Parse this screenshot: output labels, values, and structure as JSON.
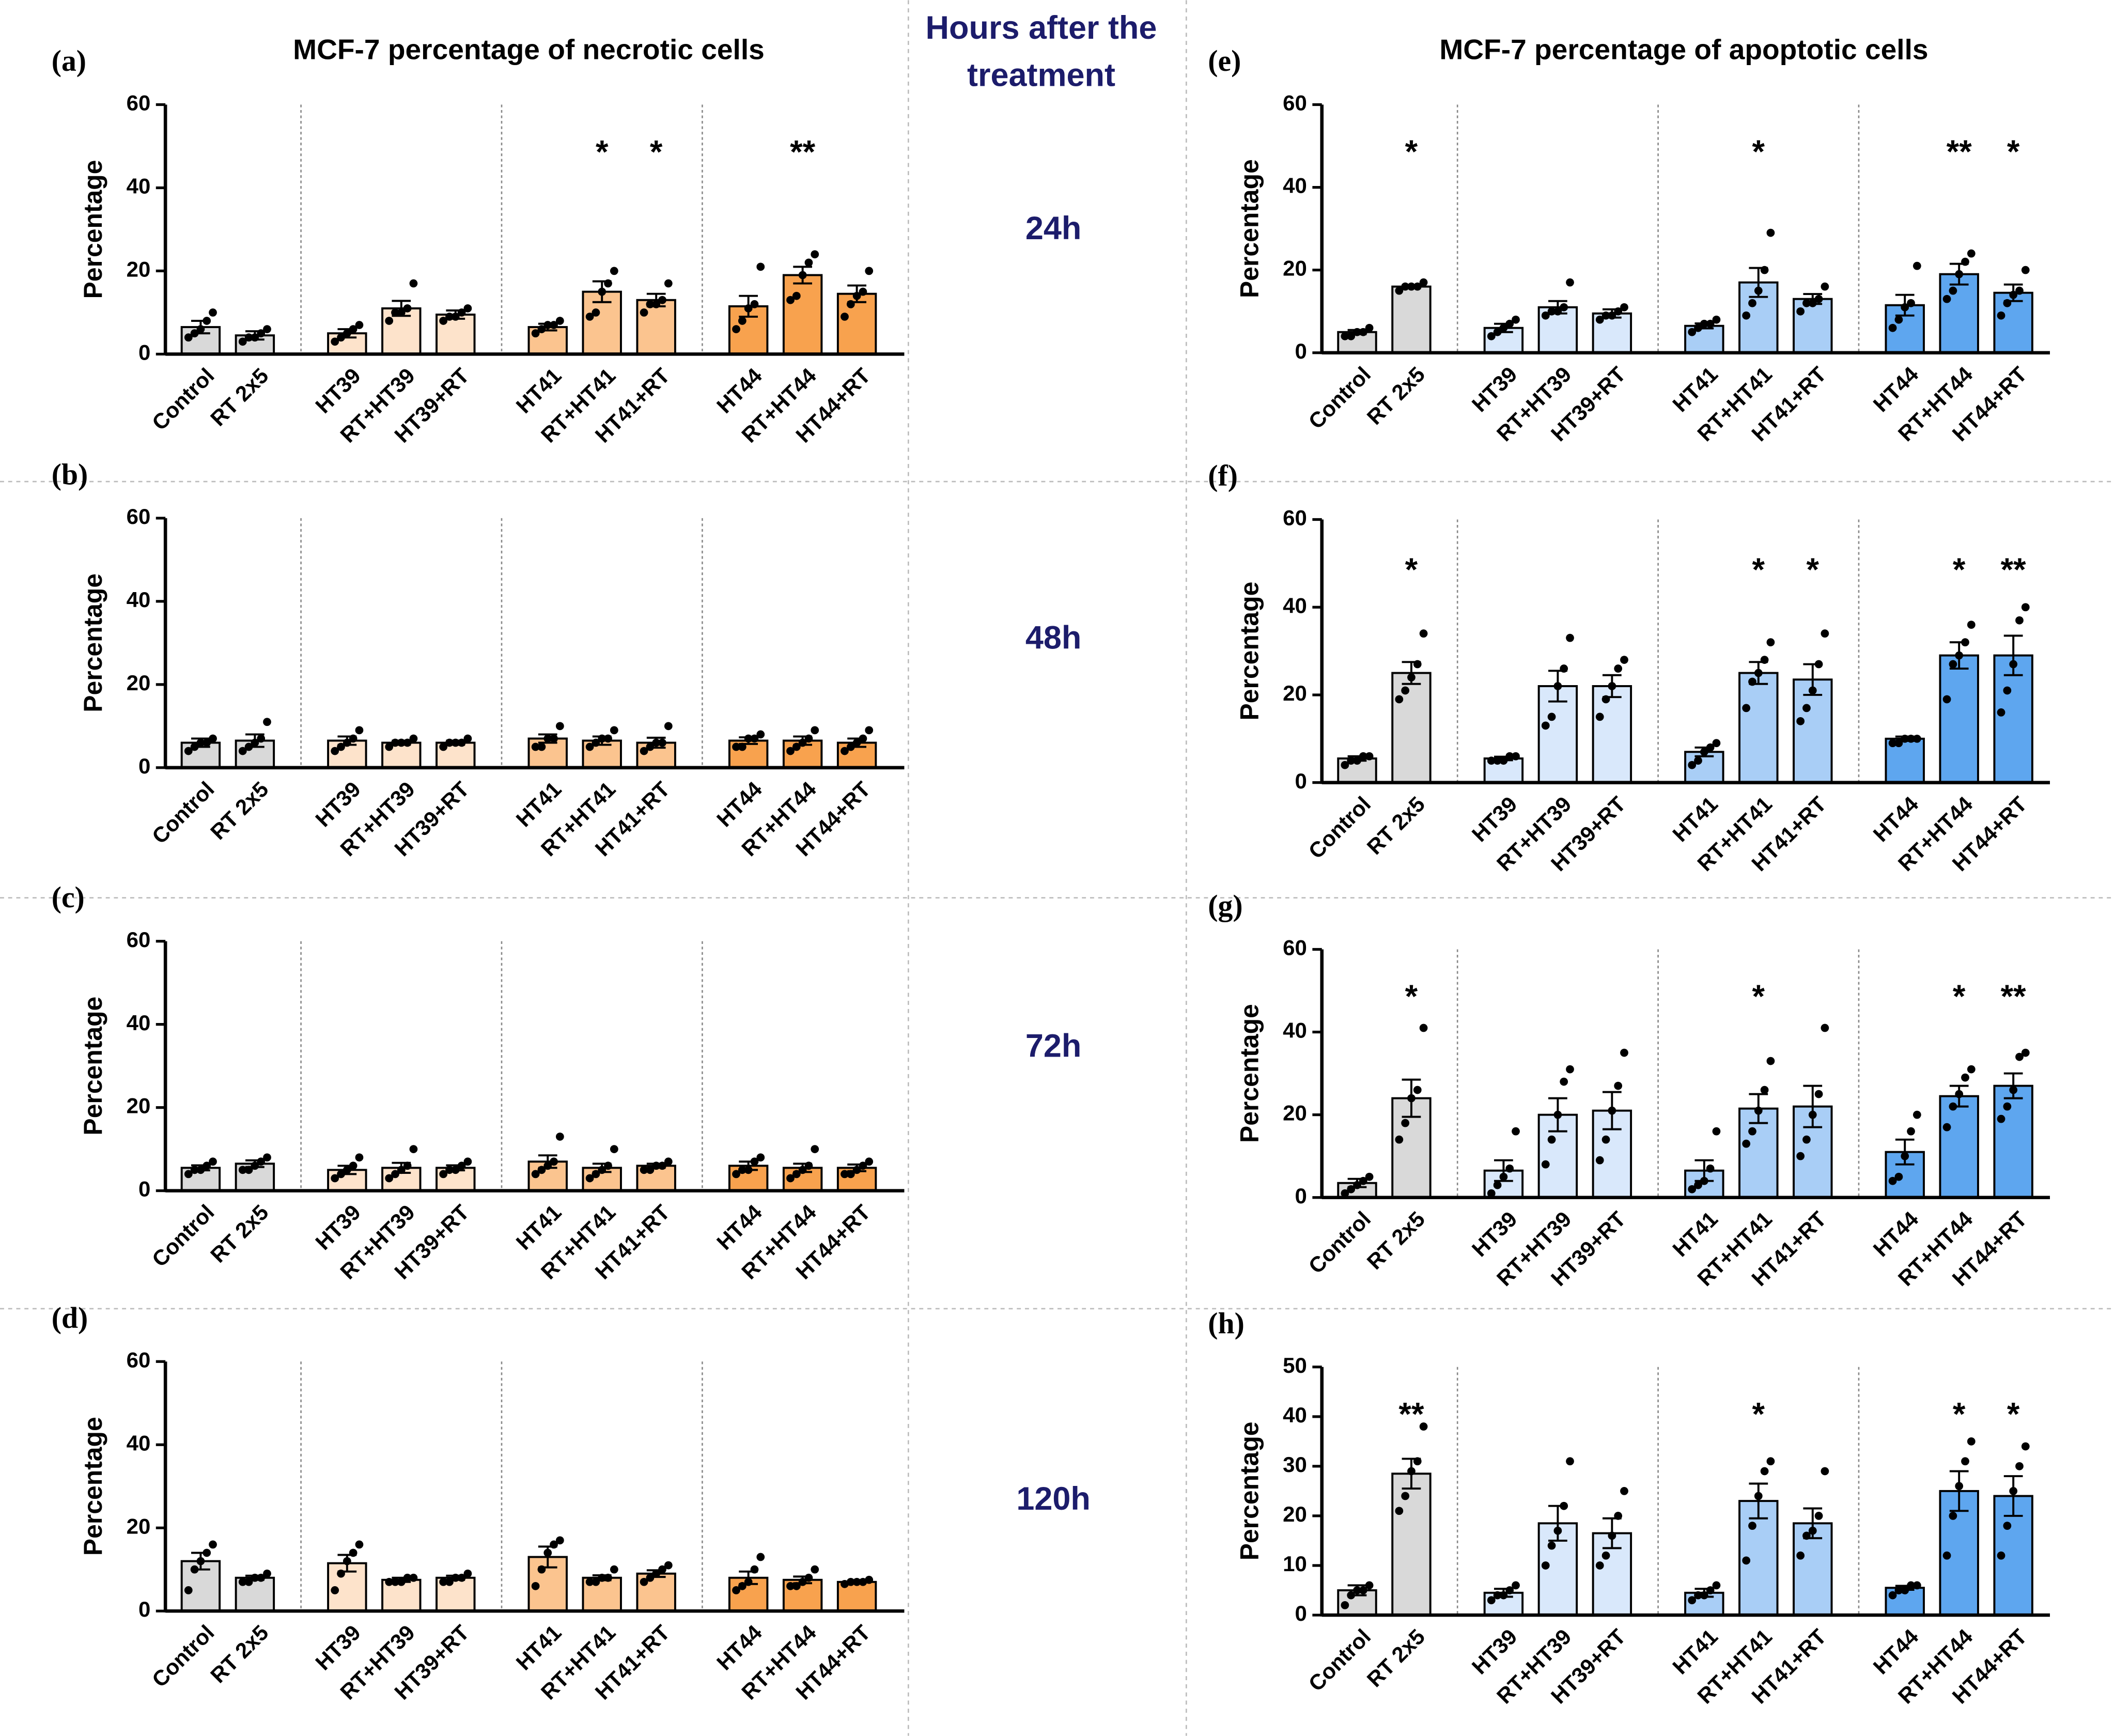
{
  "column_titles": [
    "MCF-7 percentage of necrotic cells",
    "MCF-7 percentage of apoptotic cells"
  ],
  "hours_header": [
    "Hours after the",
    "treatment"
  ],
  "hours": [
    "24h",
    "48h",
    "72h",
    "120h"
  ],
  "chart_data": [
    {
      "type": "bar",
      "panel": "(a)",
      "ylabel": "Percentage",
      "categories": [
        "Control",
        "RT 2x5",
        "HT39",
        "RT+HT39",
        "HT39+RT",
        "HT41",
        "RT+HT41",
        "HT41+RT",
        "HT44",
        "RT+HT44",
        "HT44+RT"
      ],
      "colors": [
        "#d9d9d9",
        "#d9d9d9",
        "#fde3cb",
        "#fde3cb",
        "#fde3cb",
        "#fbc48f",
        "#fbc48f",
        "#fbc48f",
        "#f8a24e",
        "#f8a24e",
        "#f8a24e"
      ],
      "values": [
        6.5,
        4.5,
        5,
        11,
        9.5,
        6.5,
        15,
        13,
        11.5,
        19,
        14.5
      ],
      "errors": [
        1.5,
        1,
        1,
        1.8,
        1,
        0.8,
        2.5,
        1.5,
        2.5,
        2,
        2
      ],
      "points": [
        [
          4,
          5,
          6,
          8,
          10
        ],
        [
          3,
          4,
          4,
          5,
          6
        ],
        [
          3,
          4,
          5,
          6,
          7
        ],
        [
          8,
          10,
          10,
          11,
          17
        ],
        [
          8,
          9,
          9,
          10,
          11
        ],
        [
          5,
          6,
          7,
          7,
          8
        ],
        [
          9,
          10,
          15,
          17,
          20
        ],
        [
          10,
          12,
          12,
          13,
          17
        ],
        [
          6,
          8,
          11,
          12,
          21
        ],
        [
          13,
          14,
          19,
          22,
          24
        ],
        [
          9,
          12,
          14,
          15,
          20
        ]
      ],
      "ylim": [
        0,
        60
      ],
      "yticks": [
        0,
        20,
        40,
        60
      ],
      "annotations": [
        {
          "index": 6,
          "label": "*"
        },
        {
          "index": 7,
          "label": "*"
        },
        {
          "index": 9,
          "label": "**"
        }
      ]
    },
    {
      "type": "bar",
      "panel": "(b)",
      "ylabel": "Percentage",
      "categories": [
        "Control",
        "RT 2x5",
        "HT39",
        "RT+HT39",
        "HT39+RT",
        "HT41",
        "RT+HT41",
        "HT41+RT",
        "HT44",
        "RT+HT44",
        "HT44+RT"
      ],
      "colors": [
        "#d9d9d9",
        "#d9d9d9",
        "#fde3cb",
        "#fde3cb",
        "#fde3cb",
        "#fbc48f",
        "#fbc48f",
        "#fbc48f",
        "#f8a24e",
        "#f8a24e",
        "#f8a24e"
      ],
      "values": [
        6,
        6.5,
        6.5,
        6,
        6,
        7,
        6.5,
        6,
        6.5,
        6.5,
        6
      ],
      "errors": [
        1,
        1.5,
        1,
        0.5,
        0.5,
        1,
        1,
        1.2,
        0.8,
        1,
        1
      ],
      "points": [
        [
          4,
          5,
          6,
          6,
          7
        ],
        [
          4,
          5,
          6,
          7,
          11
        ],
        [
          4,
          5,
          6,
          7,
          9
        ],
        [
          5,
          6,
          6,
          6,
          7
        ],
        [
          5,
          6,
          6,
          6,
          7
        ],
        [
          5,
          5,
          7,
          7,
          10
        ],
        [
          5,
          6,
          7,
          7,
          9
        ],
        [
          4,
          5,
          6,
          6,
          10
        ],
        [
          5,
          5,
          7,
          7,
          8
        ],
        [
          4,
          5,
          6,
          7,
          9
        ],
        [
          4,
          5,
          6,
          7,
          9
        ]
      ],
      "ylim": [
        0,
        60
      ],
      "yticks": [
        0,
        20,
        40,
        60
      ],
      "annotations": []
    },
    {
      "type": "bar",
      "panel": "(c)",
      "ylabel": "Percentage",
      "categories": [
        "Control",
        "RT 2x5",
        "HT39",
        "RT+HT39",
        "HT39+RT",
        "HT41",
        "RT+HT41",
        "HT41+RT",
        "HT44",
        "RT+HT44",
        "HT44+RT"
      ],
      "colors": [
        "#d9d9d9",
        "#d9d9d9",
        "#fde3cb",
        "#fde3cb",
        "#fde3cb",
        "#fbc48f",
        "#fbc48f",
        "#fbc48f",
        "#f8a24e",
        "#f8a24e",
        "#f8a24e"
      ],
      "values": [
        5.5,
        6.5,
        5,
        5.5,
        5.5,
        7,
        5.5,
        6,
        6,
        5.5,
        5.5
      ],
      "errors": [
        0.6,
        0.8,
        1,
        1.2,
        0.6,
        1.5,
        1,
        0.5,
        1,
        1,
        0.8
      ],
      "points": [
        [
          4,
          5,
          5,
          6,
          7
        ],
        [
          5,
          5,
          6,
          7,
          8
        ],
        [
          3,
          4,
          5,
          6,
          8
        ],
        [
          3,
          4,
          5,
          6,
          10
        ],
        [
          4,
          5,
          5,
          6,
          7
        ],
        [
          4,
          5,
          6,
          7,
          13
        ],
        [
          3,
          4,
          5,
          6,
          10
        ],
        [
          5,
          5,
          6,
          6,
          7
        ],
        [
          4,
          5,
          5,
          7,
          8
        ],
        [
          3,
          4,
          5,
          6,
          10
        ],
        [
          4,
          4,
          5,
          6,
          7
        ]
      ],
      "ylim": [
        0,
        60
      ],
      "yticks": [
        0,
        20,
        40,
        60
      ],
      "annotations": []
    },
    {
      "type": "bar",
      "panel": "(d)",
      "ylabel": "Percentage",
      "categories": [
        "Control",
        "RT 2x5",
        "HT39",
        "RT+HT39",
        "HT39+RT",
        "HT41",
        "RT+HT41",
        "HT41+RT",
        "HT44",
        "RT+HT44",
        "HT44+RT"
      ],
      "colors": [
        "#d9d9d9",
        "#d9d9d9",
        "#fde3cb",
        "#fde3cb",
        "#fde3cb",
        "#fbc48f",
        "#fbc48f",
        "#fbc48f",
        "#f8a24e",
        "#f8a24e",
        "#f8a24e"
      ],
      "values": [
        12,
        8,
        11.5,
        7.5,
        8,
        13,
        8,
        9,
        8,
        7.5,
        7
      ],
      "errors": [
        2,
        0.5,
        2,
        0.5,
        0.5,
        2.5,
        0.6,
        0.8,
        1.5,
        0.8,
        0.3
      ],
      "points": [
        [
          5,
          10,
          12,
          14,
          16
        ],
        [
          7,
          7,
          8,
          8,
          9
        ],
        [
          5,
          9,
          12,
          14,
          16
        ],
        [
          7,
          7,
          7,
          8,
          8
        ],
        [
          7,
          7,
          8,
          8,
          9
        ],
        [
          6,
          10,
          14,
          16,
          17
        ],
        [
          7,
          7,
          8,
          8,
          10
        ],
        [
          7,
          8,
          9,
          10,
          11
        ],
        [
          5,
          6,
          7,
          10,
          13
        ],
        [
          6,
          6,
          7,
          8,
          10
        ],
        [
          6.5,
          7,
          7,
          7,
          7.5
        ]
      ],
      "ylim": [
        0,
        60
      ],
      "yticks": [
        0,
        20,
        40,
        60
      ],
      "annotations": []
    },
    {
      "type": "bar",
      "panel": "(e)",
      "ylabel": "Percentage",
      "categories": [
        "Control",
        "RT 2x5",
        "HT39",
        "RT+HT39",
        "HT39+RT",
        "HT41",
        "RT+HT41",
        "HT41+RT",
        "HT44",
        "RT+HT44",
        "HT44+RT"
      ],
      "colors": [
        "#d9d9d9",
        "#d9d9d9",
        "#d9e8fb",
        "#d9e8fb",
        "#d9e8fb",
        "#a9cef6",
        "#a9cef6",
        "#a9cef6",
        "#5ea6ef",
        "#5ea6ef",
        "#5ea6ef"
      ],
      "values": [
        5,
        16,
        6,
        11,
        9.5,
        6.5,
        17,
        13,
        11.5,
        19,
        14.5
      ],
      "errors": [
        0.5,
        0.4,
        1,
        1.5,
        1,
        0.6,
        3.5,
        1.2,
        2.5,
        2.5,
        2
      ],
      "points": [
        [
          4,
          4,
          5,
          5,
          6
        ],
        [
          15,
          16,
          16,
          16,
          17
        ],
        [
          4,
          5,
          6,
          7,
          8
        ],
        [
          9,
          10,
          10,
          11,
          17
        ],
        [
          8,
          9,
          9,
          10,
          11
        ],
        [
          5,
          6,
          7,
          7,
          8
        ],
        [
          9,
          12,
          15,
          20,
          29
        ],
        [
          10,
          12,
          12,
          13,
          16
        ],
        [
          6,
          8,
          11,
          12,
          21
        ],
        [
          13,
          15,
          19,
          22,
          24
        ],
        [
          9,
          12,
          14,
          15,
          20
        ]
      ],
      "ylim": [
        0,
        60
      ],
      "yticks": [
        0,
        20,
        40,
        60
      ],
      "annotations": [
        {
          "index": 1,
          "label": "*"
        },
        {
          "index": 6,
          "label": "*"
        },
        {
          "index": 9,
          "label": "**"
        },
        {
          "index": 10,
          "label": "*"
        }
      ]
    },
    {
      "type": "bar",
      "panel": "(f)",
      "ylabel": "Percentage",
      "categories": [
        "Control",
        "RT 2x5",
        "HT39",
        "RT+HT39",
        "HT39+RT",
        "HT41",
        "RT+HT41",
        "HT41+RT",
        "HT44",
        "RT+HT44",
        "HT44+RT"
      ],
      "colors": [
        "#d9d9d9",
        "#d9d9d9",
        "#d9e8fb",
        "#d9e8fb",
        "#d9e8fb",
        "#a9cef6",
        "#a9cef6",
        "#a9cef6",
        "#5ea6ef",
        "#5ea6ef",
        "#5ea6ef"
      ],
      "values": [
        5.5,
        25,
        5.5,
        22,
        22,
        7,
        25,
        23.5,
        10,
        29,
        29
      ],
      "errors": [
        0.5,
        2.5,
        0.4,
        3.5,
        2.5,
        1,
        2.5,
        3.5,
        0.5,
        3,
        4.5
      ],
      "points": [
        [
          4,
          5,
          5,
          6,
          6
        ],
        [
          19,
          21,
          24,
          27,
          34
        ],
        [
          5,
          5,
          5,
          6,
          6
        ],
        [
          13,
          15,
          22,
          26,
          33
        ],
        [
          15,
          19,
          22,
          26,
          28
        ],
        [
          4,
          5,
          7,
          8,
          9
        ],
        [
          17,
          23,
          25,
          28,
          32
        ],
        [
          14,
          17,
          21,
          27,
          34
        ],
        [
          9,
          9,
          10,
          10,
          10
        ],
        [
          19,
          27,
          29,
          32,
          36
        ],
        [
          16,
          21,
          27,
          37,
          40
        ]
      ],
      "ylim": [
        0,
        60
      ],
      "yticks": [
        0,
        20,
        40,
        60
      ],
      "annotations": [
        {
          "index": 1,
          "label": "*"
        },
        {
          "index": 6,
          "label": "*"
        },
        {
          "index": 7,
          "label": "*"
        },
        {
          "index": 9,
          "label": "*"
        },
        {
          "index": 10,
          "label": "**"
        }
      ]
    },
    {
      "type": "bar",
      "panel": "(g)",
      "ylabel": "Percentage",
      "categories": [
        "Control",
        "RT 2x5",
        "HT39",
        "RT+HT39",
        "HT39+RT",
        "HT41",
        "RT+HT41",
        "HT41+RT",
        "HT44",
        "RT+HT44",
        "HT44+RT"
      ],
      "colors": [
        "#d9d9d9",
        "#d9d9d9",
        "#d9e8fb",
        "#d9e8fb",
        "#d9e8fb",
        "#a9cef6",
        "#a9cef6",
        "#a9cef6",
        "#5ea6ef",
        "#5ea6ef",
        "#5ea6ef"
      ],
      "values": [
        3.5,
        24,
        6.5,
        20,
        21,
        6.5,
        21.5,
        22,
        11,
        24.5,
        27
      ],
      "errors": [
        1,
        4.5,
        2.5,
        4,
        4.5,
        2.5,
        3.5,
        5,
        3,
        2.5,
        3
      ],
      "points": [
        [
          1,
          2,
          3,
          4,
          5
        ],
        [
          14,
          18,
          24,
          26,
          41
        ],
        [
          1,
          3,
          5,
          7,
          16
        ],
        [
          8,
          14,
          20,
          28,
          31
        ],
        [
          9,
          14,
          21,
          27,
          35
        ],
        [
          2,
          3,
          4,
          7,
          16
        ],
        [
          13,
          16,
          21,
          26,
          33
        ],
        [
          10,
          14,
          20,
          25,
          41
        ],
        [
          4,
          5,
          10,
          16,
          20
        ],
        [
          17,
          22,
          25,
          29,
          31
        ],
        [
          19,
          22,
          26,
          34,
          35
        ]
      ],
      "ylim": [
        0,
        60
      ],
      "yticks": [
        0,
        20,
        40,
        60
      ],
      "annotations": [
        {
          "index": 1,
          "label": "*"
        },
        {
          "index": 6,
          "label": "*"
        },
        {
          "index": 9,
          "label": "*"
        },
        {
          "index": 10,
          "label": "**"
        }
      ]
    },
    {
      "type": "bar",
      "panel": "(h)",
      "ylabel": "Percentage",
      "categories": [
        "Control",
        "RT 2x5",
        "HT39",
        "RT+HT39",
        "HT39+RT",
        "HT41",
        "RT+HT41",
        "HT41+RT",
        "HT44",
        "RT+HT44",
        "HT44+RT"
      ],
      "colors": [
        "#d9d9d9",
        "#d9d9d9",
        "#d9e8fb",
        "#d9e8fb",
        "#d9e8fb",
        "#a9cef6",
        "#a9cef6",
        "#a9cef6",
        "#5ea6ef",
        "#5ea6ef",
        "#5ea6ef"
      ],
      "values": [
        5,
        28.5,
        4.5,
        18.5,
        16.5,
        4.5,
        23,
        18.5,
        5.5,
        25,
        24
      ],
      "errors": [
        1,
        3,
        0.8,
        3.5,
        3,
        0.8,
        3.5,
        3,
        0.4,
        4,
        4
      ],
      "points": [
        [
          2,
          4,
          5,
          5,
          6
        ],
        [
          21,
          24,
          29,
          31,
          38
        ],
        [
          3,
          4,
          4,
          5,
          6
        ],
        [
          10,
          14,
          17,
          22,
          31
        ],
        [
          10,
          12,
          16,
          20,
          25
        ],
        [
          3,
          4,
          4,
          5,
          6
        ],
        [
          11,
          18,
          24,
          29,
          31
        ],
        [
          12,
          16,
          17,
          20,
          29
        ],
        [
          4,
          5,
          5,
          6,
          6
        ],
        [
          12,
          20,
          26,
          31,
          35
        ],
        [
          12,
          18,
          25,
          30,
          34
        ]
      ],
      "ylim": [
        0,
        50
      ],
      "yticks": [
        0,
        10,
        20,
        30,
        40,
        50
      ],
      "annotations": [
        {
          "index": 1,
          "label": "**"
        },
        {
          "index": 6,
          "label": "*"
        },
        {
          "index": 9,
          "label": "*"
        },
        {
          "index": 10,
          "label": "*"
        }
      ]
    }
  ]
}
